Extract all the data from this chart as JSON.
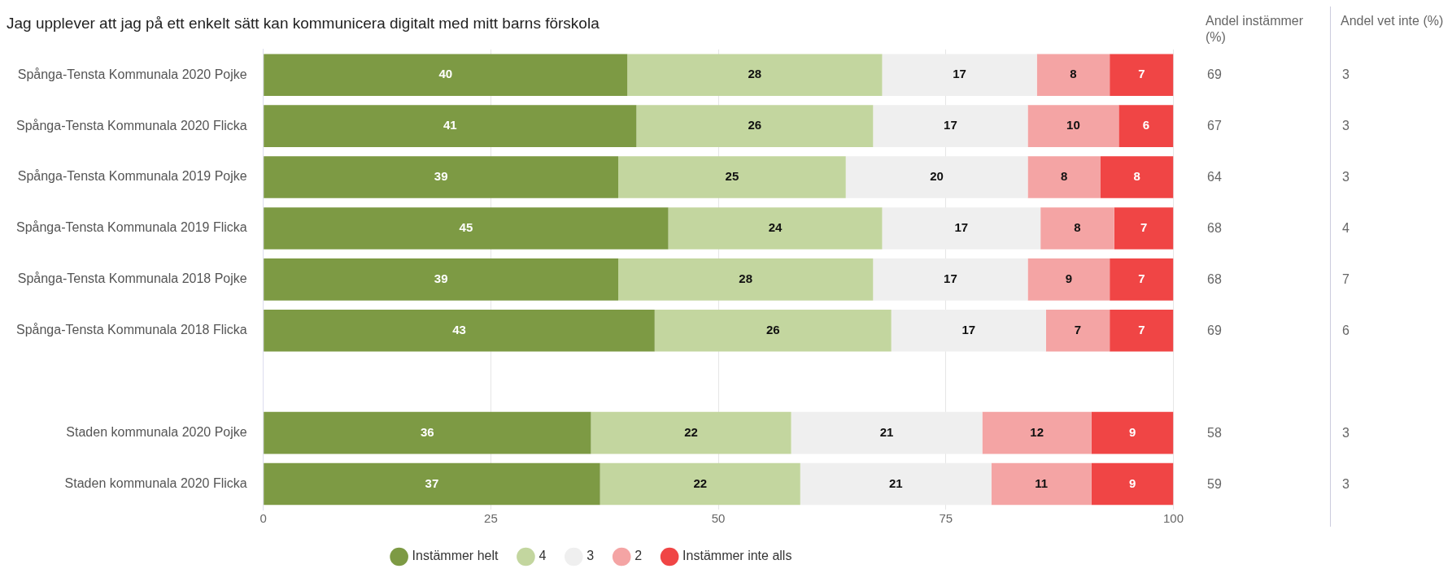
{
  "chart_data": [
    {
      "type": "bar",
      "orientation": "horizontal",
      "stacked": true,
      "title": "Jag upplever att jag på ett enkelt sätt kan kommunicera digitalt med mitt barns förskola",
      "categories": [
        "Spånga-Tensta Kommunala 2020 Pojke",
        "Spånga-Tensta Kommunala 2020 Flicka",
        "Spånga-Tensta Kommunala 2019 Pojke",
        "Spånga-Tensta Kommunala 2019 Flicka",
        "Spånga-Tensta Kommunala 2018 Pojke",
        "Spånga-Tensta Kommunala 2018 Flicka",
        null,
        "Staden kommunala 2020 Pojke",
        "Staden kommunala 2020 Flicka"
      ],
      "series": [
        {
          "name": "Instämmer helt",
          "color": "#7d9a44",
          "values": [
            40,
            41,
            39,
            44.5,
            39,
            43,
            null,
            36,
            37
          ],
          "value_labels": [
            "40",
            "41",
            "39",
            "45",
            "39",
            "43",
            null,
            "36",
            "37"
          ]
        },
        {
          "name": "4",
          "color": "#c3d69f",
          "values": [
            28,
            26,
            25,
            23.5,
            28,
            26,
            null,
            22,
            22
          ],
          "value_labels": [
            "28",
            "26",
            "25",
            "24",
            "28",
            "26",
            null,
            "22",
            "22"
          ]
        },
        {
          "name": "3",
          "color": "#efefef",
          "values": [
            17,
            17,
            20,
            17.4,
            17,
            17,
            null,
            21,
            21
          ],
          "value_labels": [
            "17",
            "17",
            "20",
            "17",
            "17",
            "17",
            null,
            "21",
            "21"
          ]
        },
        {
          "name": "2",
          "color": "#f4a4a4",
          "values": [
            8,
            10,
            8,
            8.1,
            9,
            7,
            null,
            12,
            11
          ],
          "value_labels": [
            "8",
            "10",
            "8",
            "8",
            "9",
            "7",
            null,
            "12",
            "11"
          ]
        },
        {
          "name": "Instämmer inte alls",
          "color": "#f04545",
          "values": [
            7,
            6,
            8,
            6.5,
            7,
            7,
            null,
            9,
            9
          ],
          "value_labels": [
            "7",
            "6",
            "8",
            "7",
            "7",
            "7",
            null,
            "9",
            "9"
          ]
        }
      ],
      "xlim": [
        0,
        100
      ],
      "xticks": [
        0,
        25,
        50,
        75,
        100
      ],
      "grid": "x",
      "legend": "bottom",
      "marker": "circle"
    },
    {
      "type": "other",
      "title": "Andel instämmer (%)",
      "categories": [
        null,
        null,
        null,
        null,
        null,
        null,
        null,
        null,
        null
      ],
      "values": [
        69,
        67,
        64,
        68,
        68,
        69,
        null,
        58,
        59
      ],
      "data_labels": true
    },
    {
      "type": "other",
      "title": "Andel vet inte (%)",
      "categories": [
        null,
        null,
        null,
        null,
        null,
        null,
        null,
        null,
        null
      ],
      "values": [
        3,
        3,
        3,
        4,
        7,
        6,
        null,
        3,
        3
      ],
      "data_labels": true
    }
  ]
}
